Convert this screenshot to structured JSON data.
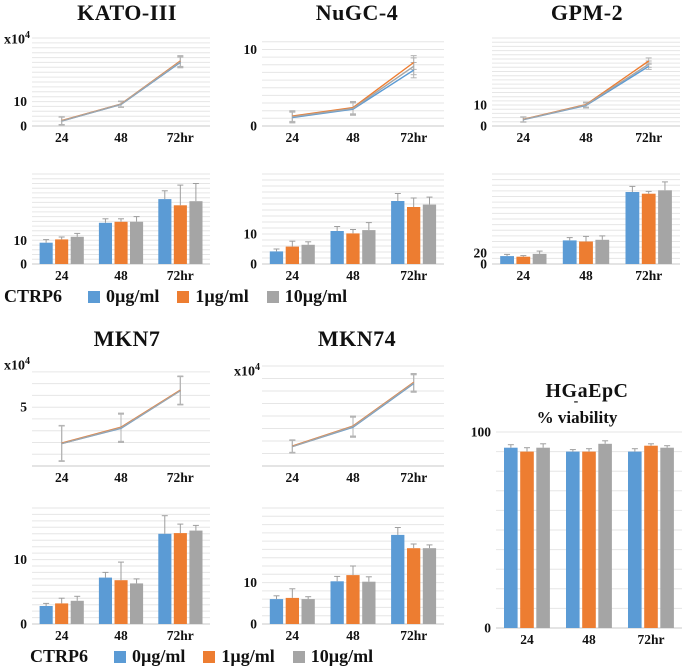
{
  "figure": {
    "background": "#ffffff"
  },
  "unit_label": {
    "base": "x10",
    "exp": "4"
  },
  "legend": {
    "prefix": "CTRP6",
    "entries": [
      {
        "label": "0µg/ml",
        "color": "#5B9BD5"
      },
      {
        "label": "1µg/ml",
        "color": "#ED7D31"
      },
      {
        "label": "10µg/ml",
        "color": "#A5A5A5"
      }
    ]
  },
  "chart_data": [
    {
      "id": "kato_line",
      "cell_line": "KATO-III",
      "type": "line",
      "y_unit": "x10^4",
      "categories": [
        "24",
        "48",
        "72hr"
      ],
      "ylim": [
        0,
        36
      ],
      "grid_step": 2,
      "yticks": [
        {
          "v": 0,
          "label": "0"
        },
        {
          "v": 10,
          "label": "10"
        }
      ],
      "series": [
        {
          "name": "0µg/ml",
          "color": "#5B9BD5",
          "values": [
            2.0,
            8.8,
            26.0
          ],
          "errors": [
            1.6,
            1.2,
            2.2
          ]
        },
        {
          "name": "1µg/ml",
          "color": "#ED7D31",
          "values": [
            2.2,
            9.0,
            26.6
          ],
          "errors": [
            1.6,
            1.2,
            2.2
          ]
        },
        {
          "name": "10µg/ml",
          "color": "#A5A5A5",
          "values": [
            2.1,
            8.9,
            26.3
          ],
          "errors": [
            1.6,
            1.2,
            2.2
          ]
        }
      ]
    },
    {
      "id": "nugc_line",
      "cell_line": "NuGC-4",
      "type": "line",
      "categories": [
        "24",
        "48",
        "72hr"
      ],
      "ylim": [
        0,
        11.5
      ],
      "grid_step": 1,
      "yticks": [
        {
          "v": 0,
          "label": "0"
        },
        {
          "v": 10,
          "label": "10"
        }
      ],
      "series": [
        {
          "name": "0µg/ml",
          "color": "#5B9BD5",
          "values": [
            1.1,
            2.2,
            7.3
          ],
          "errors": [
            0.7,
            0.8,
            1.0
          ]
        },
        {
          "name": "1µg/ml",
          "color": "#ED7D31",
          "values": [
            1.3,
            2.4,
            8.3
          ],
          "errors": [
            0.7,
            0.8,
            0.9
          ]
        },
        {
          "name": "10µg/ml",
          "color": "#A5A5A5",
          "values": [
            1.2,
            2.3,
            7.8
          ],
          "errors": [
            0.7,
            0.8,
            1.1
          ]
        }
      ]
    },
    {
      "id": "gpm_line",
      "cell_line": "GPM-2",
      "type": "line",
      "categories": [
        "24",
        "48",
        "72hr"
      ],
      "ylim": [
        0,
        42
      ],
      "grid_step": 2,
      "yticks": [
        {
          "v": 0,
          "label": "0"
        },
        {
          "v": 10,
          "label": "10"
        }
      ],
      "series": [
        {
          "name": "0µg/ml",
          "color": "#5B9BD5",
          "values": [
            3.0,
            9.8,
            28.5
          ],
          "errors": [
            1.2,
            1.2,
            1.5
          ]
        },
        {
          "name": "1µg/ml",
          "color": "#ED7D31",
          "values": [
            3.2,
            10.2,
            31.0
          ],
          "errors": [
            1.2,
            1.2,
            1.5
          ]
        },
        {
          "name": "10µg/ml",
          "color": "#A5A5A5",
          "values": [
            3.1,
            10.0,
            29.5
          ],
          "errors": [
            1.2,
            1.2,
            1.5
          ]
        }
      ]
    },
    {
      "id": "kato_bar",
      "cell_line": "KATO-III",
      "type": "bar",
      "categories": [
        "24",
        "48",
        "72hr"
      ],
      "ylim": [
        0,
        38
      ],
      "grid_step": 2,
      "yticks": [
        {
          "v": 0,
          "label": "0"
        },
        {
          "v": 10,
          "label": "10"
        }
      ],
      "series": [
        {
          "name": "0µg/ml",
          "color": "#5B9BD5",
          "values": [
            9.0,
            17.4,
            27.4
          ],
          "errors": [
            1.3,
            1.7,
            3.5
          ]
        },
        {
          "name": "1µg/ml",
          "color": "#ED7D31",
          "values": [
            10.4,
            17.8,
            24.8
          ],
          "errors": [
            1.0,
            1.3,
            8.5
          ]
        },
        {
          "name": "10µg/ml",
          "color": "#A5A5A5",
          "values": [
            11.5,
            17.8,
            26.5
          ],
          "errors": [
            1.4,
            2.2,
            7.5
          ]
        }
      ]
    },
    {
      "id": "nugc_bar",
      "cell_line": "NuGC-4",
      "type": "bar",
      "categories": [
        "24",
        "48",
        "72hr"
      ],
      "ylim": [
        0,
        30
      ],
      "grid_step": 2,
      "yticks": [
        {
          "v": 0,
          "label": "0"
        },
        {
          "v": 10,
          "label": "10"
        }
      ],
      "series": [
        {
          "name": "0µg/ml",
          "color": "#5B9BD5",
          "values": [
            4.2,
            11.0,
            21.0
          ],
          "errors": [
            0.8,
            1.5,
            2.5
          ]
        },
        {
          "name": "1µg/ml",
          "color": "#ED7D31",
          "values": [
            5.8,
            10.2,
            19.0
          ],
          "errors": [
            1.8,
            1.3,
            3.0
          ]
        },
        {
          "name": "10µg/ml",
          "color": "#A5A5A5",
          "values": [
            6.4,
            11.3,
            19.8
          ],
          "errors": [
            1.0,
            2.5,
            2.5
          ]
        }
      ]
    },
    {
      "id": "gpm_bar",
      "cell_line": "GPM-2",
      "type": "bar",
      "categories": [
        "24",
        "48",
        "72hr"
      ],
      "ylim": [
        0,
        160
      ],
      "grid_step": 10,
      "yticks": [
        {
          "v": 0,
          "label": "0"
        },
        {
          "v": 20,
          "label": "20"
        }
      ],
      "series": [
        {
          "name": "0µg/ml",
          "color": "#5B9BD5",
          "values": [
            14,
            42,
            128
          ],
          "errors": [
            3,
            5,
            10
          ]
        },
        {
          "name": "1µg/ml",
          "color": "#ED7D31",
          "values": [
            13,
            40,
            125
          ],
          "errors": [
            2,
            9,
            4
          ]
        },
        {
          "name": "10µg/ml",
          "color": "#A5A5A5",
          "values": [
            18,
            43,
            131
          ],
          "errors": [
            5,
            7,
            15
          ]
        }
      ]
    },
    {
      "id": "mkn7_line",
      "cell_line": "MKN7",
      "type": "line",
      "y_unit": "x10^4",
      "categories": [
        "24",
        "48",
        "72hr"
      ],
      "ylim": [
        0,
        8.5
      ],
      "grid_step": 1,
      "yticks": [
        {
          "v": 5,
          "label": "5"
        }
      ],
      "series": [
        {
          "name": "0µg/ml",
          "color": "#5B9BD5",
          "values": [
            1.9,
            3.2,
            6.4
          ],
          "errors": [
            1.5,
            1.2,
            1.2
          ]
        },
        {
          "name": "1µg/ml",
          "color": "#ED7D31",
          "values": [
            1.95,
            3.3,
            6.45
          ],
          "errors": [
            1.5,
            1.2,
            1.2
          ]
        },
        {
          "name": "10µg/ml",
          "color": "#A5A5A5",
          "values": [
            1.9,
            3.25,
            6.4
          ],
          "errors": [
            1.5,
            1.2,
            1.2
          ]
        }
      ]
    },
    {
      "id": "mkn74_line",
      "cell_line": "MKN74",
      "type": "line",
      "y_unit": "x10^4",
      "categories": [
        "24",
        "48",
        "72hr"
      ],
      "ylim": [
        0,
        8
      ],
      "grid_step": 1,
      "yticks": [],
      "series": [
        {
          "name": "0µg/ml",
          "color": "#5B9BD5",
          "values": [
            1.55,
            3.1,
            6.6
          ],
          "errors": [
            0.5,
            0.8,
            0.7
          ]
        },
        {
          "name": "1µg/ml",
          "color": "#ED7D31",
          "values": [
            1.6,
            3.2,
            6.7
          ],
          "errors": [
            0.5,
            0.8,
            0.7
          ]
        },
        {
          "name": "10µg/ml",
          "color": "#A5A5A5",
          "values": [
            1.55,
            3.15,
            6.65
          ],
          "errors": [
            0.5,
            0.8,
            0.7
          ]
        }
      ]
    },
    {
      "id": "mkn7_bar",
      "cell_line": "MKN7",
      "type": "bar",
      "categories": [
        "24",
        "48",
        "72hr"
      ],
      "ylim": [
        0,
        18
      ],
      "grid_step": 1,
      "yticks": [
        {
          "v": 0,
          "label": "0"
        },
        {
          "v": 10,
          "label": "10"
        }
      ],
      "series": [
        {
          "name": "0µg/ml",
          "color": "#5B9BD5",
          "values": [
            2.8,
            7.2,
            14.0
          ],
          "errors": [
            0.4,
            0.8,
            2.8
          ]
        },
        {
          "name": "1µg/ml",
          "color": "#ED7D31",
          "values": [
            3.2,
            6.8,
            14.1
          ],
          "errors": [
            0.8,
            2.8,
            1.4
          ]
        },
        {
          "name": "10µg/ml",
          "color": "#A5A5A5",
          "values": [
            3.6,
            6.3,
            14.5
          ],
          "errors": [
            0.7,
            0.7,
            0.8
          ]
        }
      ]
    },
    {
      "id": "mkn74_bar",
      "cell_line": "MKN74",
      "type": "bar",
      "categories": [
        "24",
        "48",
        "72hr"
      ],
      "ylim": [
        0,
        28
      ],
      "grid_step": 2,
      "yticks": [
        {
          "v": 0,
          "label": "0"
        },
        {
          "v": 10,
          "label": "10"
        }
      ],
      "series": [
        {
          "name": "0µg/ml",
          "color": "#5B9BD5",
          "values": [
            6.0,
            10.3,
            21.5
          ],
          "errors": [
            0.8,
            1.2,
            1.8
          ]
        },
        {
          "name": "1µg/ml",
          "color": "#ED7D31",
          "values": [
            6.3,
            11.8,
            18.3
          ],
          "errors": [
            2.2,
            2.2,
            1.0
          ]
        },
        {
          "name": "10µg/ml",
          "color": "#A5A5A5",
          "values": [
            6.0,
            10.2,
            18.3
          ],
          "errors": [
            0.6,
            1.2,
            0.8
          ]
        }
      ]
    },
    {
      "id": "hga_bar",
      "cell_line": "HGaEpC",
      "subtitle": "% viability",
      "annotation": "-",
      "type": "bar",
      "categories": [
        "24",
        "48",
        "72hr"
      ],
      "ylim": [
        0,
        100
      ],
      "grid_step": 10,
      "yticks": [
        {
          "v": 0,
          "label": "0"
        },
        {
          "v": 100,
          "label": "100"
        }
      ],
      "series": [
        {
          "name": "0µg/ml",
          "color": "#5B9BD5",
          "values": [
            92,
            90,
            90
          ],
          "errors": [
            1.5,
            1.0,
            1.5
          ]
        },
        {
          "name": "1µg/ml",
          "color": "#ED7D31",
          "values": [
            90,
            90,
            93
          ],
          "errors": [
            2.0,
            1.5,
            1.0
          ]
        },
        {
          "name": "10µg/ml",
          "color": "#A5A5A5",
          "values": [
            92,
            94,
            92
          ],
          "errors": [
            2.0,
            1.5,
            1.0
          ]
        }
      ]
    }
  ]
}
